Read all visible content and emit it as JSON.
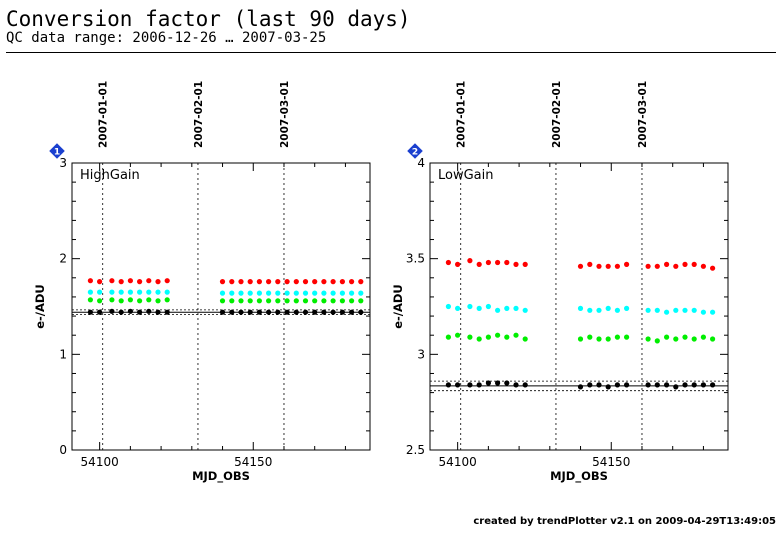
{
  "header": {
    "title": "Conversion factor (last 90 days)",
    "subtitle": "QC data range: 2006-12-26 … 2007-03-25"
  },
  "footer": {
    "credit": "created by trendPlotter v2.1 on 2009-04-29T13:49:05"
  },
  "colors": {
    "red": "#ff0000",
    "cyan": "#00ffff",
    "green": "#00ee00",
    "black": "#000000",
    "badge": "#1a3fcf"
  },
  "chart_data": [
    {
      "type": "scatter",
      "panel_id": "1",
      "badge_icon": "diamond-badge-icon",
      "label": "HighGain",
      "xlabel": "MJD_OBS",
      "ylabel": "e-/ADU",
      "xlim": [
        54091,
        54188
      ],
      "ylim": [
        0,
        3
      ],
      "x_ticks": [
        54100,
        54150
      ],
      "y_ticks": [
        0,
        1,
        2,
        3
      ],
      "y_tick_labels": [
        "0",
        "1",
        "2",
        "3"
      ],
      "date_markers": [
        {
          "x": 54101,
          "label": "2007-01-01"
        },
        {
          "x": 54132,
          "label": "2007-02-01"
        },
        {
          "x": 54160,
          "label": "2007-03-01"
        }
      ],
      "reference_lines": [
        {
          "y": 1.44,
          "style": "solid"
        },
        {
          "y": 1.415,
          "style": "dotted"
        },
        {
          "y": 1.465,
          "style": "dotted"
        }
      ],
      "series": [
        {
          "color": "red",
          "x": [
            54097,
            54100,
            54104,
            54107,
            54110,
            54113,
            54116,
            54119,
            54122,
            54140,
            54143,
            54146,
            54149,
            54152,
            54155,
            54158,
            54161,
            54164,
            54167,
            54170,
            54173,
            54176,
            54179,
            54182,
            54185
          ],
          "y": [
            1.77,
            1.76,
            1.77,
            1.76,
            1.77,
            1.76,
            1.77,
            1.76,
            1.77,
            1.76,
            1.76,
            1.76,
            1.76,
            1.76,
            1.76,
            1.76,
            1.76,
            1.76,
            1.76,
            1.76,
            1.76,
            1.76,
            1.76,
            1.76,
            1.76
          ]
        },
        {
          "color": "cyan",
          "x": [
            54097,
            54100,
            54104,
            54107,
            54110,
            54113,
            54116,
            54119,
            54122,
            54140,
            54143,
            54146,
            54149,
            54152,
            54155,
            54158,
            54161,
            54164,
            54167,
            54170,
            54173,
            54176,
            54179,
            54182,
            54185
          ],
          "y": [
            1.65,
            1.65,
            1.65,
            1.65,
            1.65,
            1.65,
            1.65,
            1.65,
            1.65,
            1.64,
            1.64,
            1.64,
            1.64,
            1.64,
            1.64,
            1.64,
            1.64,
            1.64,
            1.64,
            1.64,
            1.64,
            1.64,
            1.64,
            1.64,
            1.64
          ]
        },
        {
          "color": "green",
          "x": [
            54097,
            54100,
            54104,
            54107,
            54110,
            54113,
            54116,
            54119,
            54122,
            54140,
            54143,
            54146,
            54149,
            54152,
            54155,
            54158,
            54161,
            54164,
            54167,
            54170,
            54173,
            54176,
            54179,
            54182,
            54185
          ],
          "y": [
            1.57,
            1.56,
            1.57,
            1.56,
            1.57,
            1.56,
            1.57,
            1.56,
            1.57,
            1.56,
            1.56,
            1.56,
            1.56,
            1.56,
            1.56,
            1.56,
            1.56,
            1.56,
            1.56,
            1.56,
            1.56,
            1.56,
            1.56,
            1.56,
            1.56
          ]
        },
        {
          "color": "black",
          "x": [
            54097,
            54100,
            54104,
            54107,
            54110,
            54113,
            54116,
            54119,
            54122,
            54140,
            54143,
            54146,
            54149,
            54152,
            54155,
            54158,
            54161,
            54164,
            54167,
            54170,
            54173,
            54176,
            54179,
            54182,
            54185
          ],
          "y": [
            1.44,
            1.44,
            1.45,
            1.44,
            1.45,
            1.44,
            1.45,
            1.44,
            1.44,
            1.44,
            1.44,
            1.44,
            1.44,
            1.44,
            1.44,
            1.44,
            1.44,
            1.44,
            1.44,
            1.44,
            1.44,
            1.44,
            1.44,
            1.44,
            1.44
          ]
        }
      ]
    },
    {
      "type": "scatter",
      "panel_id": "2",
      "badge_icon": "diamond-badge-icon",
      "label": "LowGain",
      "xlabel": "MJD_OBS",
      "ylabel": "e-/ADU",
      "xlim": [
        54091,
        54188
      ],
      "ylim": [
        2.5,
        4
      ],
      "x_ticks": [
        54100,
        54150
      ],
      "y_ticks": [
        2.5,
        3,
        3.5,
        4
      ],
      "y_tick_labels": [
        "2.5",
        "3",
        "3.5",
        "4"
      ],
      "date_markers": [
        {
          "x": 54101,
          "label": "2007-01-01"
        },
        {
          "x": 54132,
          "label": "2007-02-01"
        },
        {
          "x": 54160,
          "label": "2007-03-01"
        }
      ],
      "reference_lines": [
        {
          "y": 2.835,
          "style": "solid"
        },
        {
          "y": 2.81,
          "style": "dotted"
        },
        {
          "y": 2.86,
          "style": "dotted"
        }
      ],
      "series": [
        {
          "color": "red",
          "x": [
            54097,
            54100,
            54104,
            54107,
            54110,
            54113,
            54116,
            54119,
            54122,
            54140,
            54143,
            54146,
            54149,
            54152,
            54155,
            54162,
            54165,
            54168,
            54171,
            54174,
            54177,
            54180,
            54183
          ],
          "y": [
            3.48,
            3.47,
            3.49,
            3.47,
            3.48,
            3.48,
            3.48,
            3.47,
            3.47,
            3.46,
            3.47,
            3.46,
            3.46,
            3.46,
            3.47,
            3.46,
            3.46,
            3.47,
            3.46,
            3.47,
            3.47,
            3.46,
            3.45
          ]
        },
        {
          "color": "cyan",
          "x": [
            54097,
            54100,
            54104,
            54107,
            54110,
            54113,
            54116,
            54119,
            54122,
            54140,
            54143,
            54146,
            54149,
            54152,
            54155,
            54162,
            54165,
            54168,
            54171,
            54174,
            54177,
            54180,
            54183
          ],
          "y": [
            3.25,
            3.24,
            3.25,
            3.24,
            3.25,
            3.23,
            3.24,
            3.24,
            3.23,
            3.24,
            3.23,
            3.23,
            3.24,
            3.23,
            3.24,
            3.23,
            3.23,
            3.22,
            3.23,
            3.23,
            3.23,
            3.22,
            3.22
          ]
        },
        {
          "color": "green",
          "x": [
            54097,
            54100,
            54104,
            54107,
            54110,
            54113,
            54116,
            54119,
            54122,
            54140,
            54143,
            54146,
            54149,
            54152,
            54155,
            54162,
            54165,
            54168,
            54171,
            54174,
            54177,
            54180,
            54183
          ],
          "y": [
            3.09,
            3.1,
            3.09,
            3.08,
            3.09,
            3.1,
            3.09,
            3.1,
            3.08,
            3.08,
            3.09,
            3.08,
            3.08,
            3.09,
            3.09,
            3.08,
            3.07,
            3.09,
            3.08,
            3.09,
            3.08,
            3.09,
            3.08
          ]
        },
        {
          "color": "black",
          "x": [
            54097,
            54100,
            54104,
            54107,
            54110,
            54113,
            54116,
            54119,
            54122,
            54140,
            54143,
            54146,
            54149,
            54152,
            54155,
            54162,
            54165,
            54168,
            54171,
            54174,
            54177,
            54180,
            54183
          ],
          "y": [
            2.84,
            2.84,
            2.84,
            2.84,
            2.85,
            2.85,
            2.85,
            2.84,
            2.84,
            2.83,
            2.84,
            2.84,
            2.83,
            2.84,
            2.84,
            2.84,
            2.84,
            2.84,
            2.83,
            2.84,
            2.84,
            2.84,
            2.84
          ]
        }
      ]
    }
  ]
}
